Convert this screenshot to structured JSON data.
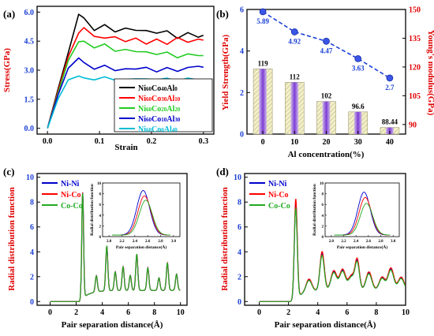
{
  "chart_data": [
    {
      "panel": "(a)",
      "type": "line",
      "xlabel": "Strain",
      "ylabel": "Stress(GPa)",
      "xlim": [
        -0.02,
        0.32
      ],
      "ylim": [
        -0.3,
        6.3
      ],
      "xticks": [
        "0.0",
        "0.1",
        "0.2",
        "0.3"
      ],
      "yticks": [
        "0.0",
        "1.5",
        "3.0",
        "4.5",
        "6.0"
      ],
      "legend_position": "lower-right",
      "x": [
        0.0,
        0.02,
        0.04,
        0.06,
        0.07,
        0.09,
        0.11,
        0.13,
        0.15,
        0.17,
        0.19,
        0.21,
        0.23,
        0.25,
        0.27,
        0.29,
        0.3
      ],
      "series": [
        {
          "name": "Ni60Co40Al0",
          "name_parts": [
            "Ni",
            "60",
            "Co",
            "40",
            "Al",
            "0"
          ],
          "color": "#000000",
          "values": [
            0.0,
            2.0,
            3.9,
            5.89,
            5.7,
            5.1,
            5.3,
            5.0,
            5.2,
            5.0,
            5.1,
            4.9,
            5.0,
            4.7,
            4.9,
            4.7,
            4.85
          ]
        },
        {
          "name": "Ni60Co30Al10",
          "name_parts": [
            "Ni",
            "60",
            "Co",
            "30",
            "Al",
            "10"
          ],
          "color": "#ff0000",
          "values": [
            0.0,
            1.9,
            3.7,
            4.92,
            5.2,
            4.8,
            4.6,
            4.75,
            4.5,
            4.6,
            4.4,
            4.6,
            4.3,
            4.75,
            4.4,
            4.6,
            4.6
          ]
        },
        {
          "name": "Ni60Co20Al20",
          "name_parts": [
            "Ni",
            "60",
            "Co",
            "20",
            "Al",
            "20"
          ],
          "color": "#22cc22",
          "values": [
            0.0,
            1.8,
            3.5,
            4.47,
            4.5,
            4.2,
            4.3,
            4.0,
            4.1,
            3.9,
            4.0,
            3.8,
            3.9,
            3.7,
            3.8,
            3.75,
            3.8
          ]
        },
        {
          "name": "Ni60Co10Al30",
          "name_parts": [
            "Ni",
            "60",
            "Co",
            "10",
            "Al",
            "30"
          ],
          "color": "#0000cc",
          "values": [
            0.0,
            1.7,
            3.1,
            3.63,
            3.4,
            3.1,
            3.2,
            3.0,
            3.1,
            3.0,
            3.2,
            2.9,
            3.1,
            3.0,
            3.1,
            3.2,
            3.2
          ]
        },
        {
          "name": "Ni60Co0Al40",
          "name_parts": [
            "Ni",
            "60",
            "Co",
            "0",
            "Al",
            "40"
          ],
          "color": "#00bcd4",
          "values": [
            0.0,
            1.5,
            2.5,
            2.7,
            2.6,
            2.55,
            2.6,
            2.5,
            2.55,
            2.5,
            2.6,
            2.5,
            2.55,
            2.5,
            2.55,
            2.5,
            2.55
          ]
        }
      ]
    },
    {
      "panel": "(b)",
      "type": "bar",
      "xlabel": "Al concentration(%)",
      "ylabel": "Yield Strength(GPa)",
      "y2label": "Young's modulus(GPa)",
      "categories": [
        "0",
        "10",
        "20",
        "30",
        "40"
      ],
      "ylim": [
        0,
        6
      ],
      "y2lim": [
        85,
        150
      ],
      "yticks": [
        "0",
        "2",
        "4",
        "6"
      ],
      "y2ticks": [
        "90",
        "105",
        "120",
        "135",
        "150"
      ],
      "series": [
        {
          "name": "Young's modulus",
          "axis": "right",
          "type": "bar",
          "values": [
            119,
            112,
            102,
            96.6,
            88.44
          ],
          "labels": [
            "119",
            "112",
            "102",
            "96.6",
            "88.44"
          ]
        },
        {
          "name": "Yield Strength",
          "axis": "left",
          "type": "line",
          "color": "#1a3fd6",
          "values": [
            5.89,
            4.92,
            4.47,
            3.63,
            2.7
          ],
          "labels": [
            "5.89",
            "4.92",
            "4.47",
            "3.63",
            "2.7"
          ]
        }
      ]
    },
    {
      "panel": "(c)",
      "type": "line",
      "xlabel": "Pair separation distance(Å)",
      "ylabel": "Radial distribution function",
      "xlim": [
        -1,
        10.5
      ],
      "ylim": [
        -0.3,
        10.3
      ],
      "xticks": [
        "0",
        "2",
        "4",
        "6",
        "8",
        "10"
      ],
      "yticks": [
        "0",
        "2",
        "4",
        "6",
        "8",
        "10"
      ],
      "legend_position": "top-left",
      "peaks": [
        [
          2.5,
          8.5,
          0.07
        ],
        [
          3.55,
          1.3,
          0.08
        ],
        [
          4.35,
          3.6,
          0.08
        ],
        [
          5.0,
          1.5,
          0.08
        ],
        [
          5.6,
          1.9,
          0.08
        ],
        [
          6.15,
          1.2,
          0.08
        ],
        [
          6.65,
          2.9,
          0.08
        ],
        [
          7.5,
          1.8,
          0.08
        ],
        [
          8.35,
          1.0,
          0.08
        ],
        [
          9.0,
          2.2,
          0.08
        ],
        [
          9.7,
          1.3,
          0.08
        ]
      ],
      "series": [
        {
          "name": "Ni-Ni",
          "color": "#0000cc",
          "scale": 1.0
        },
        {
          "name": "Ni-Co",
          "color": "#ff0000",
          "scale": 1.0
        },
        {
          "name": "Co-Co",
          "color": "#22aa22",
          "scale": 1.0
        }
      ],
      "inset": {
        "xlabel": "Pair separation distance(Å)",
        "ylabel": "Radial distribution function",
        "xlim": [
          1.9,
          3.1
        ],
        "ylim": [
          0,
          10
        ],
        "xticks": [
          "2.0",
          "2.2",
          "2.4",
          "2.6",
          "2.8",
          "3.0"
        ],
        "yticks": [
          "0",
          "2",
          "4",
          "6",
          "8",
          "10"
        ],
        "peak_values": [
          8.3,
          7.3,
          6.5
        ],
        "peak_positions": [
          2.53,
          2.55,
          2.57
        ]
      }
    },
    {
      "panel": "(d)",
      "type": "line",
      "xlabel": "Pair separation distance(Å)",
      "ylabel": "Radial distribution function",
      "xlim": [
        -1,
        10
      ],
      "ylim": [
        -0.3,
        10.3
      ],
      "xticks": [
        "0",
        "2",
        "4",
        "6",
        "8",
        "10"
      ],
      "yticks": [
        "0",
        "2",
        "4",
        "6",
        "8",
        "10"
      ],
      "legend_position": "top-left",
      "peaks": [
        [
          2.5,
          7.6,
          0.1
        ],
        [
          3.4,
          1.0,
          0.2
        ],
        [
          4.3,
          3.0,
          0.15
        ],
        [
          5.1,
          1.5,
          0.2
        ],
        [
          5.7,
          1.6,
          0.2
        ],
        [
          6.3,
          1.1,
          0.2
        ],
        [
          6.7,
          2.3,
          0.15
        ],
        [
          7.5,
          1.4,
          0.2
        ],
        [
          8.4,
          1.0,
          0.2
        ],
        [
          9.0,
          1.7,
          0.2
        ],
        [
          9.7,
          1.0,
          0.2
        ]
      ],
      "series": [
        {
          "name": "Ni-Ni",
          "color": "#0000cc",
          "scale": 1.0
        },
        {
          "name": "Ni-Co",
          "color": "#ff0000",
          "scale": 1.05
        },
        {
          "name": "Co-Co",
          "color": "#22aa22",
          "scale": 0.95
        }
      ],
      "inset": {
        "xlabel": "Pair separation distance(Å)",
        "ylabel": "Radial distribution function",
        "xlim": [
          1.9,
          3.1
        ],
        "ylim": [
          0,
          10
        ],
        "xticks": [
          "2.0",
          "2.2",
          "2.4",
          "2.6",
          "2.8",
          "3.0"
        ],
        "yticks": [
          "0",
          "2",
          "4",
          "6",
          "8",
          "10"
        ],
        "peak_values": [
          8.0,
          7.0,
          5.9
        ],
        "peak_positions": [
          2.53,
          2.55,
          2.57
        ]
      }
    }
  ]
}
